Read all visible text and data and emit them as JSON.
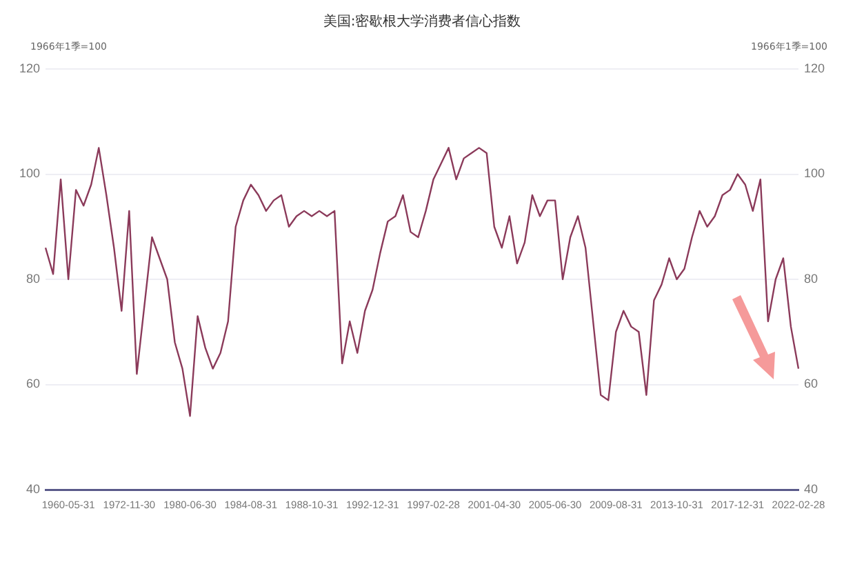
{
  "chart_data": {
    "type": "line",
    "title": "美国:密歇根大学消费者信心指数",
    "ylabel": "1966年1季=100",
    "y2label": "1966年1季=100",
    "categories": [
      null,
      null,
      null,
      "1960-05-31",
      null,
      null,
      null,
      null,
      null,
      null,
      null,
      "1972-11-30",
      null,
      null,
      null,
      null,
      null,
      null,
      null,
      "1980-06-30",
      null,
      null,
      null,
      null,
      null,
      null,
      null,
      "1984-08-31",
      null,
      null,
      null,
      null,
      null,
      null,
      null,
      "1988-10-31",
      null,
      null,
      null,
      null,
      null,
      null,
      null,
      "1992-12-31",
      null,
      null,
      null,
      null,
      null,
      null,
      null,
      "1997-02-28",
      null,
      null,
      null,
      null,
      null,
      null,
      null,
      "2001-04-30",
      null,
      null,
      null,
      null,
      null,
      null,
      null,
      "2005-06-30",
      null,
      null,
      null,
      null,
      null,
      null,
      null,
      "2009-08-31",
      null,
      null,
      null,
      null,
      null,
      null,
      null,
      "2013-10-31",
      null,
      null,
      null,
      null,
      null,
      null,
      null,
      "2017-12-31",
      null,
      null,
      null,
      null,
      null,
      null,
      null,
      "2022-02-28"
    ],
    "series": [
      {
        "color": "#8b3a5a",
        "values": [
          86,
          81,
          99,
          80,
          97,
          94,
          98,
          105,
          96,
          86,
          74,
          93,
          62,
          75,
          88,
          84,
          80,
          68,
          63,
          54,
          73,
          67,
          63,
          66,
          72,
          90,
          95,
          98,
          96,
          93,
          95,
          96,
          90,
          92,
          93,
          92,
          93,
          92,
          93,
          64,
          72,
          66,
          74,
          78,
          85,
          91,
          92,
          96,
          89,
          88,
          93,
          99,
          102,
          105,
          99,
          103,
          104,
          105,
          104,
          90,
          86,
          92,
          83,
          87,
          96,
          92,
          95,
          95,
          80,
          88,
          92,
          86,
          72,
          58,
          57,
          70,
          74,
          71,
          70,
          58,
          76,
          79,
          84,
          80,
          82,
          88,
          93,
          90,
          92,
          96,
          97,
          100,
          98,
          93,
          99,
          72,
          80,
          84,
          71,
          63
        ]
      }
    ],
    "ylim": [
      40,
      120
    ],
    "yticks": [
      40,
      60,
      80,
      100,
      120
    ],
    "y2lim": [
      40,
      120
    ],
    "y2ticks": [
      40,
      60,
      80,
      100,
      120
    ],
    "grid": "y",
    "legend": false,
    "marker": "none",
    "line_style": "solid"
  }
}
